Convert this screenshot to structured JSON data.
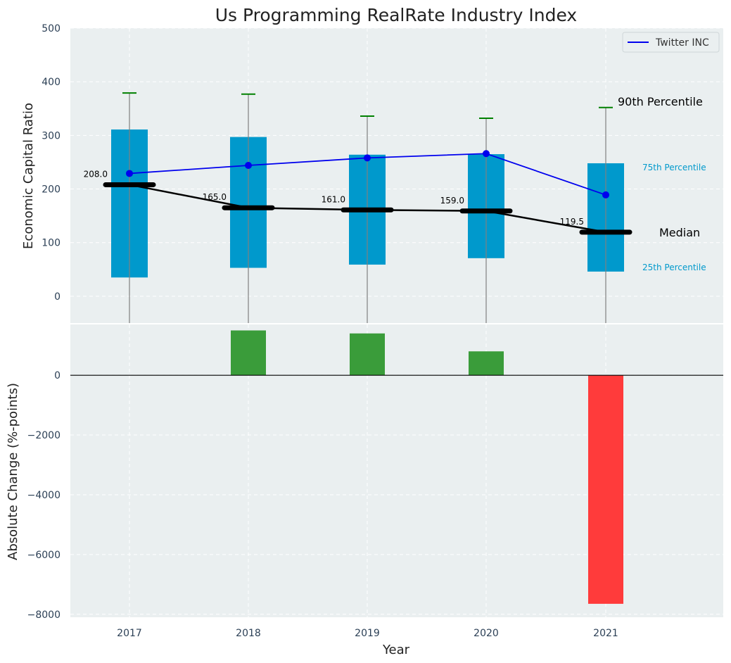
{
  "chart_data": {
    "title": "Us Programming RealRate Industry Index",
    "xlabel": "Year",
    "categories": [
      "2017",
      "2018",
      "2019",
      "2020",
      "2021"
    ],
    "colors": {
      "box": "#0099cc",
      "company": "#0000ee",
      "median": "#000000",
      "whisker_cap": "#008000",
      "whisker_line": "#808080",
      "positive": "#3a9c3a",
      "negative": "#ff3b3b",
      "plot_bg": "#eaeff0",
      "tick_text": "#2b3f55"
    },
    "top": {
      "type": "box",
      "ylabel": "Economic Capital Ratio",
      "ylim": [
        -50,
        500
      ],
      "yticks": [
        0,
        100,
        200,
        300,
        400,
        500
      ],
      "p25": [
        35,
        53,
        59,
        71,
        46
      ],
      "p75": [
        311,
        297,
        264,
        265,
        248
      ],
      "p90": [
        379,
        377,
        336,
        332,
        352
      ],
      "median": [
        208.0,
        165.0,
        161.0,
        159.0,
        119.5
      ],
      "median_labels": [
        "208.0",
        "165.0",
        "161.0",
        "159.0",
        "119.5"
      ],
      "company": {
        "name": "Twitter INC",
        "values": [
          229,
          244,
          258,
          266,
          189
        ]
      },
      "legend": "Twitter INC",
      "annotations": {
        "p90": "90th Percentile",
        "p75": "75th Percentile",
        "median": "Median",
        "p25": "25th Percentile"
      }
    },
    "bottom": {
      "type": "bar",
      "ylabel": "Absolute Change (%-points)",
      "ylim": [
        -8100,
        1700
      ],
      "yticks": [
        -8000,
        -6000,
        -4000,
        -2000,
        0
      ],
      "values": [
        0,
        1500,
        1400,
        800,
        -7650
      ]
    }
  }
}
